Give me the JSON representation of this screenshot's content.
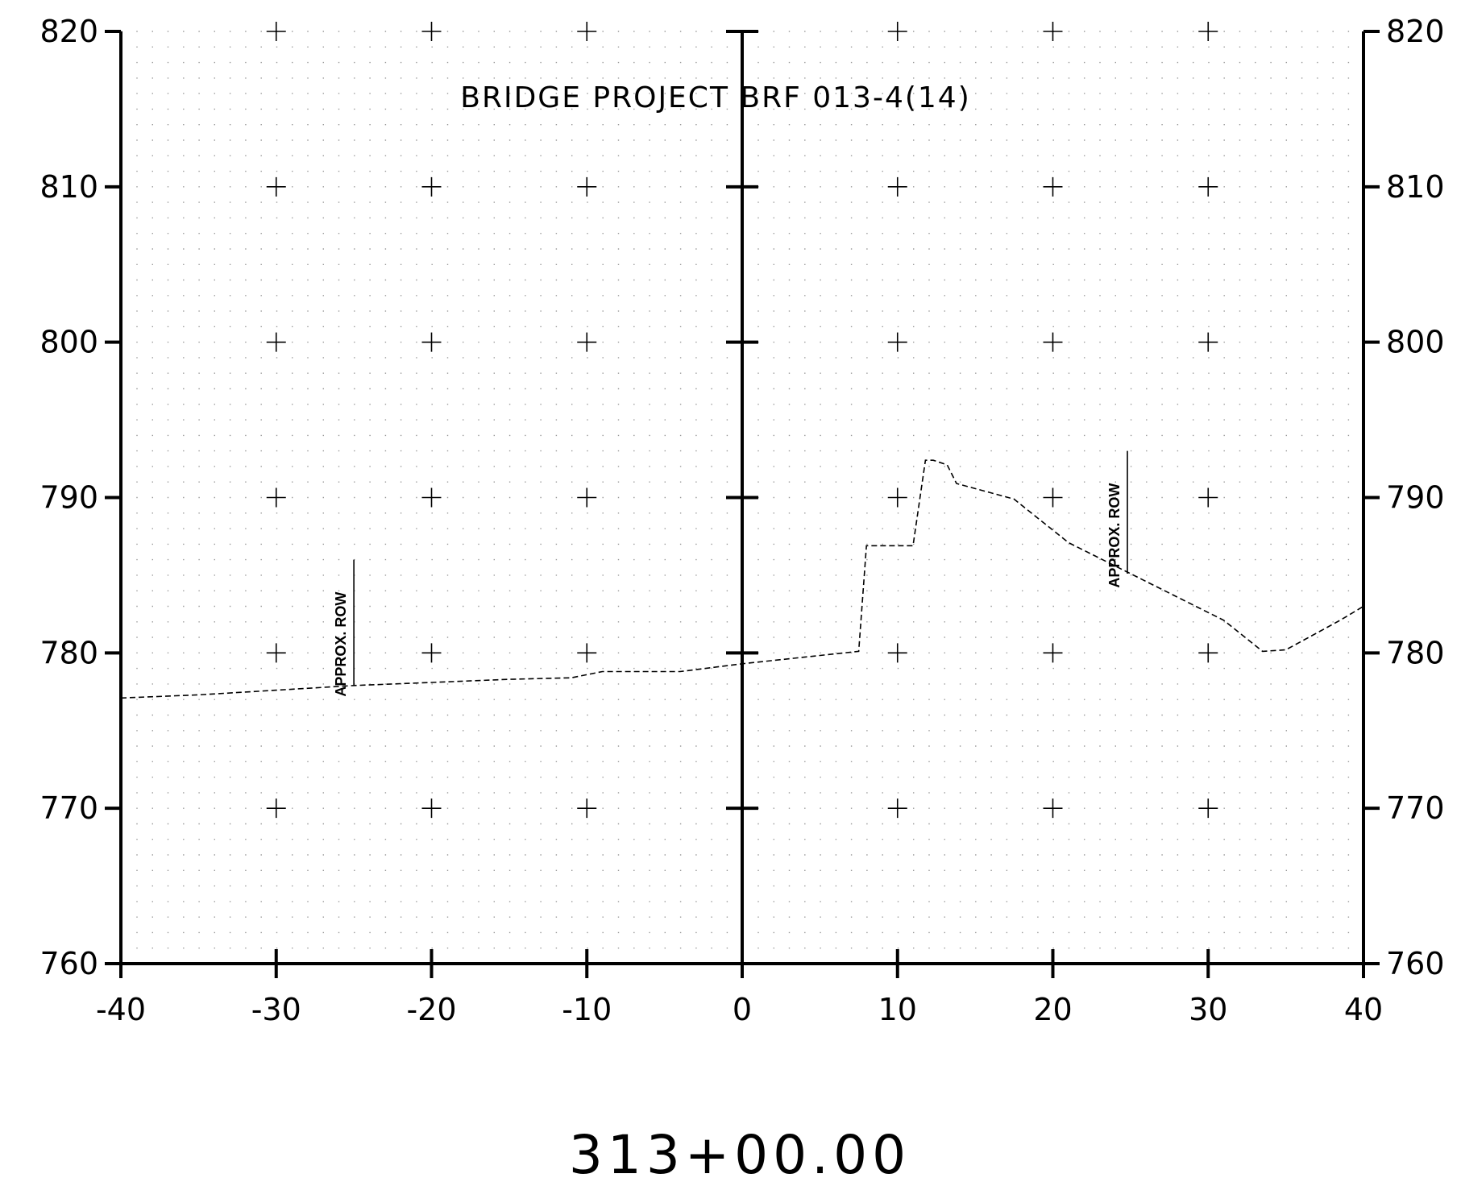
{
  "chart_data": {
    "type": "line",
    "title": "BRIDGE PROJECT BRF 013-4(14)",
    "station_label": "313+00.00",
    "xlabel": "",
    "ylabel": "",
    "xlim": [
      -40,
      40
    ],
    "ylim": [
      760,
      820
    ],
    "x_ticks": [
      "-40",
      "-30",
      "-20",
      "-10",
      "0",
      "10",
      "20",
      "30",
      "40"
    ],
    "y_ticks": [
      "760",
      "770",
      "780",
      "790",
      "800",
      "810",
      "820"
    ],
    "x_tick_values": [
      -40,
      -30,
      -20,
      -10,
      0,
      10,
      20,
      30,
      40
    ],
    "y_tick_values": [
      760,
      770,
      780,
      790,
      800,
      810,
      820
    ],
    "grid": "dotted",
    "series": [
      {
        "style": "dashed",
        "x": [
          -40,
          -35,
          -30,
          -25,
          -20,
          -15,
          -11,
          -9,
          -4,
          0,
          7.5,
          8,
          11,
          11.8,
          12.3,
          13.2,
          13.8,
          17.5,
          21,
          25,
          31,
          33.5,
          35,
          38.5,
          40
        ],
        "y": [
          777.1,
          777.3,
          777.6,
          777.9,
          778.1,
          778.3,
          778.4,
          778.8,
          778.8,
          779.3,
          780.1,
          786.9,
          786.9,
          792.4,
          792.4,
          792.1,
          790.9,
          789.9,
          787.1,
          785.1,
          782.1,
          780.1,
          780.2,
          782.1,
          783.0
        ]
      }
    ],
    "annotations": [
      {
        "text": "APPROX. ROW",
        "x": -25,
        "y_bottom": 777.9,
        "y_top": 786.0
      },
      {
        "text": "APPROX. ROW",
        "x": 24.8,
        "y_bottom": 785.1,
        "y_top": 793.0
      }
    ]
  }
}
